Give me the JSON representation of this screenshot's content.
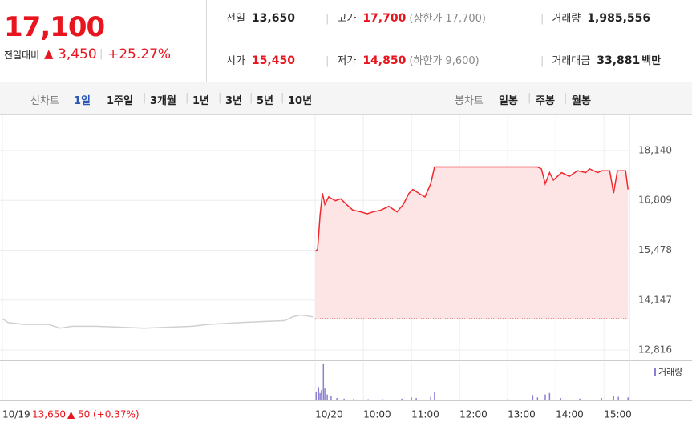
{
  "header": {
    "price": "17,100",
    "change_label": "전일대비",
    "arrow": "▲",
    "change": "3,450",
    "rate": "+25.27%",
    "rows": [
      [
        {
          "label": "전일",
          "value": "13,650"
        },
        {
          "label": "고가",
          "value": "17,700",
          "note": "(상한가 17,700)"
        },
        {
          "label": "거래량",
          "value": "1,985,556"
        }
      ],
      [
        {
          "label": "시가",
          "value": "15,450"
        },
        {
          "label": "저가",
          "value": "14,850",
          "note": "(하한가 9,600)"
        },
        {
          "label": "거래대금",
          "value": "33,881",
          "unit": "백만"
        }
      ]
    ]
  },
  "tabs": {
    "line_label": "선차트",
    "line": [
      "1일",
      "1주일",
      "3개월",
      "1년",
      "3년",
      "5년",
      "10년"
    ],
    "candle_label": "봉차트",
    "candle": [
      "일봉",
      "주봉",
      "월봉"
    ]
  },
  "chart_data": {
    "type": "line",
    "xlim": [
      2.45,
      15.53
    ],
    "ylim": [
      12540,
      19100
    ],
    "yticks": [
      {
        "value": 18140,
        "label": "18,140"
      },
      {
        "value": 16809,
        "label": "16,809"
      },
      {
        "value": 15478,
        "label": "15,478"
      },
      {
        "value": 14147,
        "label": "14,147"
      },
      {
        "value": 12816,
        "label": "12,816"
      }
    ],
    "xticks": [
      {
        "value": 2.5,
        "label": "10/19"
      },
      {
        "value": 9,
        "label": "10/20"
      },
      {
        "value": 10,
        "label": "10:00"
      },
      {
        "value": 11,
        "label": "11:00"
      },
      {
        "value": 12,
        "label": "12:00"
      },
      {
        "value": 13,
        "label": "13:00"
      },
      {
        "value": 14,
        "label": "14:00"
      },
      {
        "value": 15,
        "label": "15:00"
      }
    ],
    "baseline": 13650,
    "prev_summary": {
      "price": "13,650",
      "arrow": "▲",
      "change": "50",
      "rate": "(+0.37%)"
    },
    "series": [
      {
        "color": "#d0d0d0",
        "x": [
          2.5,
          2.62,
          2.95,
          3.45,
          3.7,
          3.95,
          4.45,
          5.45,
          6.45,
          6.78,
          7.45,
          8.37,
          8.53,
          8.7,
          8.95
        ],
        "values": [
          13650,
          13550,
          13500,
          13500,
          13400,
          13450,
          13450,
          13400,
          13450,
          13500,
          13550,
          13600,
          13700,
          13750,
          13700
        ]
      },
      {
        "color": "#f0282d",
        "fill": "#fde4e5",
        "x": [
          9.0,
          9.05,
          9.1,
          9.15,
          9.2,
          9.28,
          9.42,
          9.53,
          9.65,
          9.78,
          9.95,
          10.08,
          10.2,
          10.37,
          10.53,
          10.7,
          10.83,
          10.95,
          11.03,
          11.15,
          11.28,
          11.4,
          11.48,
          12.5,
          13.62,
          13.7,
          13.78,
          13.87,
          13.95,
          14.12,
          14.28,
          14.45,
          14.62,
          14.7,
          14.87,
          14.95,
          15.12,
          15.2,
          15.28,
          15.45,
          15.5
        ],
        "values": [
          15450,
          15500,
          16400,
          17000,
          16700,
          16900,
          16800,
          16850,
          16700,
          16550,
          16500,
          16450,
          16500,
          16550,
          16650,
          16500,
          16700,
          17000,
          17100,
          17000,
          16900,
          17250,
          17700,
          17700,
          17700,
          17650,
          17250,
          17550,
          17350,
          17550,
          17450,
          17600,
          17550,
          17650,
          17550,
          17600,
          17600,
          17000,
          17600,
          17600,
          17100
        ]
      }
    ],
    "volume": {
      "name": "거래량",
      "color": "#8c7fd0",
      "ylim": [
        0,
        130000
      ],
      "x": [
        9.02,
        9.07,
        9.1,
        9.13,
        9.17,
        9.2,
        9.25,
        9.33,
        9.45,
        9.6,
        9.8,
        10.1,
        10.4,
        10.8,
        11.0,
        11.1,
        11.4,
        11.48,
        12.0,
        12.5,
        13.0,
        13.52,
        13.62,
        13.78,
        13.87,
        14.1,
        14.5,
        14.95,
        15.2,
        15.3,
        15.5
      ],
      "values": [
        30000,
        45000,
        25000,
        35000,
        125000,
        40000,
        20000,
        15000,
        8000,
        6000,
        5000,
        4000,
        4000,
        6000,
        10000,
        8000,
        12000,
        30000,
        3000,
        3000,
        4000,
        18000,
        10000,
        20000,
        25000,
        8000,
        6000,
        8000,
        14000,
        12000,
        10000
      ]
    }
  }
}
